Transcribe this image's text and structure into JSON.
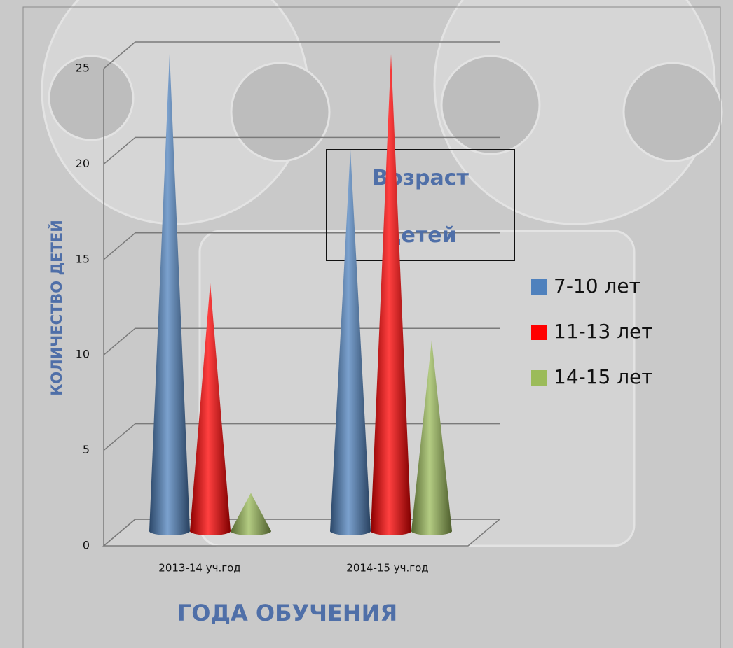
{
  "chart_data": {
    "type": "cone",
    "title": "Возраст детей",
    "x_label": "ГОДА ОБУЧЕНИЯ",
    "y_label": "КОЛИЧЕСТВО ДЕТЕЙ",
    "categories": [
      "2013-14 уч.год",
      "2014-15 уч.год"
    ],
    "series": [
      {
        "name": "7-10 лет",
        "color": "#4f81bd",
        "values": [
          25,
          20
        ]
      },
      {
        "name": "11-13 лет",
        "color": "#ff0000",
        "values": [
          13,
          25
        ]
      },
      {
        "name": "14-15 лет",
        "color": "#9bbb59",
        "values": [
          2,
          10
        ]
      }
    ],
    "ylim": [
      0,
      25
    ],
    "yticks": [
      0,
      5,
      10,
      15,
      20,
      25
    ],
    "grid": true,
    "legend": "right"
  }
}
